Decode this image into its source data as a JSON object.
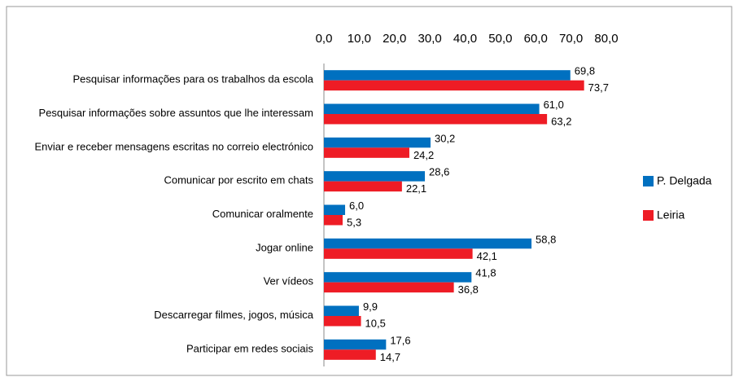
{
  "chart_data": {
    "type": "hbar",
    "categories": [
      "Pesquisar informações para os trabalhos da escola",
      "Pesquisar informações sobre assuntos que lhe interessam",
      "Enviar e receber mensagens escritas no correio electrónico",
      "Comunicar por escrito em chats",
      "Comunicar oralmente",
      "Jogar online",
      "Ver vídeos",
      "Descarregar filmes, jogos, música",
      "Participar em redes sociais"
    ],
    "series": [
      {
        "name": "P. Delgada",
        "color": "#0070c0",
        "values": [
          69.8,
          61.0,
          30.2,
          28.6,
          6.0,
          58.8,
          41.8,
          9.9,
          17.6
        ],
        "value_labels": [
          "69,8",
          "61,0",
          "30,2",
          "28,6",
          "6,0",
          "58,8",
          "41,8",
          "9,9",
          "17,6"
        ]
      },
      {
        "name": "Leiria",
        "color": "#ee1c25",
        "values": [
          73.7,
          63.2,
          24.2,
          22.1,
          5.3,
          42.1,
          36.8,
          10.5,
          14.7
        ],
        "value_labels": [
          "73,7",
          "63,2",
          "24,2",
          "22,1",
          "5,3",
          "42,1",
          "36,8",
          "10,5",
          "14,7"
        ]
      }
    ],
    "xlim": [
      0,
      80
    ],
    "xticks": [
      {
        "value": 0,
        "label": "0,0"
      },
      {
        "value": 10,
        "label": "10,0"
      },
      {
        "value": 20,
        "label": "20,0"
      },
      {
        "value": 30,
        "label": "30,0"
      },
      {
        "value": 40,
        "label": "40,0"
      },
      {
        "value": 50,
        "label": "50,0"
      },
      {
        "value": 60,
        "label": "60,0"
      },
      {
        "value": 70,
        "label": "70,0"
      },
      {
        "value": 80,
        "label": "80,0"
      }
    ],
    "legend": "right"
  }
}
